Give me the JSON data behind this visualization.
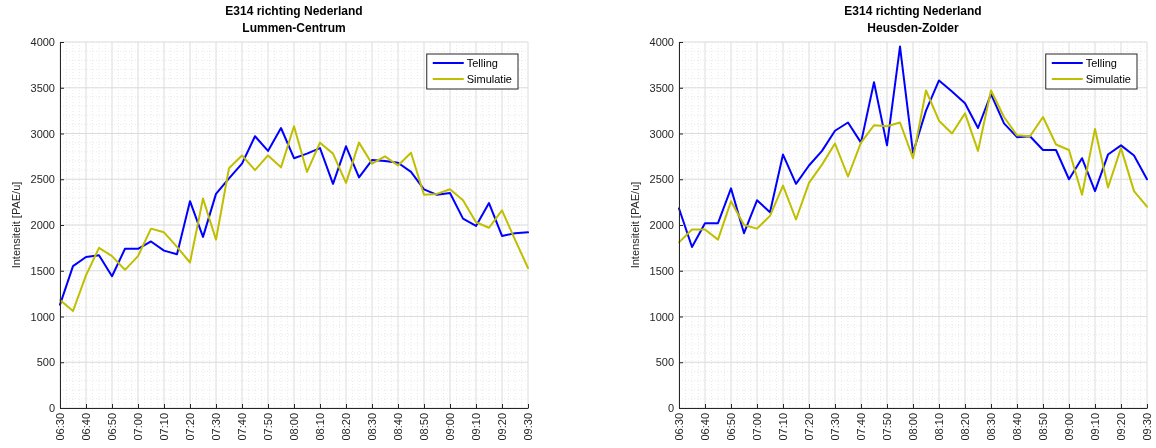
{
  "chart_data": [
    {
      "type": "line",
      "title": "E314 richting Nederland",
      "subtitle": "Lummen-Centrum",
      "ylabel": "Intensiteit [PAE/u]",
      "categories": [
        "06:30",
        null,
        "06:40",
        null,
        "06:50",
        null,
        "07:00",
        null,
        "07:10",
        null,
        "07:20",
        null,
        "07:30",
        null,
        "07:40",
        null,
        "07:50",
        null,
        "08:00",
        null,
        "08:10",
        null,
        "08:20",
        null,
        "08:30",
        null,
        "08:40",
        null,
        "08:50",
        null,
        "09:00",
        null,
        "09:10",
        null,
        "09:20",
        null,
        "09:30"
      ],
      "series": [
        {
          "name": "Telling",
          "color": "#0000ff",
          "values": [
            1130,
            1550,
            1650,
            1670,
            1440,
            1740,
            1740,
            1820,
            1720,
            1680,
            2260,
            1870,
            2340,
            2510,
            2670,
            2970,
            2810,
            3060,
            2730,
            2780,
            2840,
            2450,
            2860,
            2520,
            2710,
            2700,
            2680,
            2580,
            2390,
            2330,
            2350,
            2070,
            1990,
            2240,
            1880,
            1910,
            1920
          ]
        },
        {
          "name": "Simulatie",
          "color": "#bfbf00",
          "values": [
            1180,
            1060,
            1450,
            1750,
            1660,
            1510,
            1660,
            1960,
            1920,
            1760,
            1590,
            2290,
            1840,
            2620,
            2760,
            2600,
            2760,
            2630,
            3080,
            2580,
            2900,
            2780,
            2460,
            2900,
            2670,
            2750,
            2650,
            2790,
            2330,
            2340,
            2390,
            2270,
            2030,
            1970,
            2160,
            1840,
            1530
          ]
        }
      ],
      "ylim": [
        0,
        4000
      ],
      "yticks": [
        0,
        500,
        1000,
        1500,
        2000,
        2500,
        3000,
        3500,
        4000
      ],
      "grid": true,
      "legend": "top right"
    },
    {
      "type": "line",
      "title": "E314 richting Nederland",
      "subtitle": "Heusden-Zolder",
      "ylabel": "Intensiteit [PAE/u]",
      "categories": [
        "06:30",
        null,
        "06:40",
        null,
        "06:50",
        null,
        "07:00",
        null,
        "07:10",
        null,
        "07:20",
        null,
        "07:30",
        null,
        "07:40",
        null,
        "07:50",
        null,
        "08:00",
        null,
        "08:10",
        null,
        "08:20",
        null,
        "08:30",
        null,
        "08:40",
        null,
        "08:50",
        null,
        "09:00",
        null,
        "09:10",
        null,
        "09:20",
        null,
        "09:30"
      ],
      "series": [
        {
          "name": "Telling",
          "color": "#0000ff",
          "values": [
            2180,
            1760,
            2020,
            2020,
            2400,
            1910,
            2270,
            2140,
            2770,
            2450,
            2650,
            2810,
            3030,
            3120,
            2900,
            3560,
            2870,
            3950,
            2790,
            3250,
            3580,
            3460,
            3330,
            3060,
            3430,
            3110,
            2960,
            2970,
            2820,
            2820,
            2500,
            2730,
            2370,
            2770,
            2870,
            2760,
            2500
          ]
        },
        {
          "name": "Simulatie",
          "color": "#bfbf00",
          "values": [
            1810,
            1950,
            1950,
            1840,
            2260,
            2000,
            1960,
            2100,
            2430,
            2060,
            2460,
            2660,
            2890,
            2530,
            2900,
            3090,
            3080,
            3120,
            2730,
            3470,
            3140,
            3000,
            3220,
            2810,
            3470,
            3180,
            2980,
            2970,
            3180,
            2880,
            2820,
            2330,
            3050,
            2410,
            2840,
            2370,
            2200
          ]
        }
      ],
      "ylim": [
        0,
        4000
      ],
      "yticks": [
        0,
        500,
        1000,
        1500,
        2000,
        2500,
        3000,
        3500,
        4000
      ],
      "grid": true,
      "legend": "top right"
    }
  ]
}
